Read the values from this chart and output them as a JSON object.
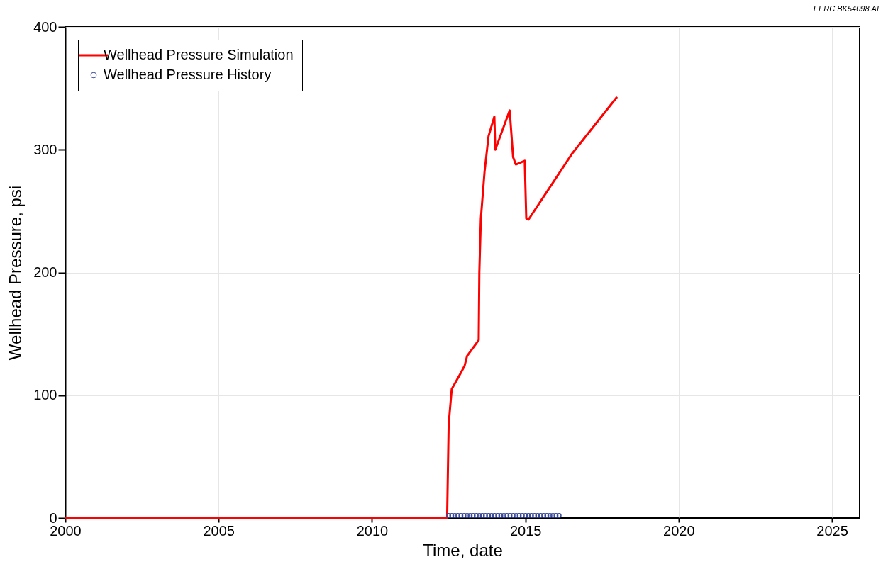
{
  "chart_data": {
    "type": "line",
    "xlabel": "Time, date",
    "ylabel": "Wellhead Pressure, psi",
    "annotations": [
      "EERC BK54098.AI"
    ],
    "xlim": [
      2000,
      2025.9
    ],
    "xticks": [
      2000,
      2005,
      2010,
      2015,
      2020,
      2025
    ],
    "ylim": [
      0,
      400
    ],
    "yticks": [
      0,
      100,
      200,
      300,
      400
    ],
    "grid": true,
    "legend": "top left",
    "series": [
      {
        "name": "Wellhead Pressure Simulation",
        "color": "#ff0000",
        "x": [
          2000,
          2012.45,
          2012.5,
          2012.52,
          2012.6,
          2012.87,
          2013.02,
          2013.1,
          2013.48,
          2013.5,
          2013.55,
          2013.67,
          2013.8,
          2013.99,
          2014.02,
          2014.49,
          2014.6,
          2014.69,
          2014.98,
          2015.03,
          2015.1,
          2016.53,
          2017.99
        ],
        "values": [
          0,
          0,
          75,
          82,
          105,
          117,
          124,
          132,
          145,
          200,
          244,
          282,
          311,
          327,
          300,
          332,
          294,
          288,
          291,
          244,
          243,
          297,
          343
        ]
      },
      {
        "name": "Wellhead Pressure History",
        "type": "scatter",
        "color": "#3a4a9a",
        "marker": "circle",
        "x": [
          2012.5,
          2012.6,
          2012.7,
          2012.8,
          2012.9,
          2013.0,
          2013.1,
          2013.2,
          2013.3,
          2013.4,
          2013.5,
          2013.6,
          2013.7,
          2013.8,
          2013.9,
          2014.0,
          2014.1,
          2014.2,
          2014.3,
          2014.4,
          2014.5,
          2014.6,
          2014.7,
          2014.8,
          2014.9,
          2015.0,
          2015.1,
          2015.2,
          2015.3,
          2015.4,
          2015.5,
          2015.6,
          2015.7,
          2015.8,
          2015.9,
          2016.0,
          2016.1
        ],
        "values": [
          2,
          2,
          2,
          2,
          2,
          2,
          2,
          2,
          2,
          2,
          2,
          2,
          2,
          2,
          2,
          2,
          2,
          2,
          2,
          2,
          2,
          2,
          2,
          2,
          2,
          2,
          2,
          2,
          2,
          2,
          2,
          2,
          2,
          2,
          2,
          2,
          2
        ]
      }
    ]
  }
}
